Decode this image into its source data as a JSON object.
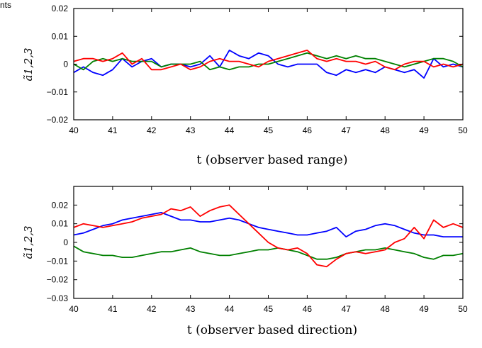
{
  "fragment_text": "nts",
  "chart_data": [
    {
      "type": "line",
      "xlabel": "t (observer based range)",
      "ylabel": "ã1,2,3",
      "xlim": [
        40,
        50
      ],
      "ylim": [
        -0.02,
        0.02
      ],
      "xticks": [
        40,
        41,
        42,
        43,
        44,
        45,
        46,
        47,
        48,
        49,
        50
      ],
      "yticks": [
        -0.02,
        -0.01,
        0,
        0.01,
        0.02
      ],
      "ytick_labels": [
        "−0.02",
        "−0.01",
        "0",
        "0.01",
        "0.02"
      ],
      "grid": false,
      "legend": "none",
      "series": [
        {
          "color": "#0000ff",
          "x": [
            40,
            40.25,
            40.5,
            40.75,
            41,
            41.25,
            41.5,
            41.75,
            42,
            42.25,
            42.5,
            42.75,
            43,
            43.25,
            43.5,
            43.75,
            44,
            44.25,
            44.5,
            44.75,
            45,
            45.25,
            45.5,
            45.75,
            46,
            46.25,
            46.5,
            46.75,
            47,
            47.25,
            47.5,
            47.75,
            48,
            48.25,
            48.5,
            48.75,
            49,
            49.25,
            49.5,
            49.75,
            50
          ],
          "y": [
            -0.003,
            -0.001,
            -0.003,
            -0.004,
            -0.002,
            0.002,
            -0.001,
            0.001,
            0.002,
            -0.001,
            0,
            0,
            -0.001,
            0,
            0.003,
            -0.001,
            0.005,
            0.003,
            0.002,
            0.004,
            0.003,
            0,
            -0.001,
            0,
            0,
            0,
            -0.003,
            -0.004,
            -0.002,
            -0.003,
            -0.002,
            -0.003,
            -0.001,
            -0.002,
            -0.003,
            -0.002,
            -0.005,
            0.002,
            -0.001,
            0,
            -0.001
          ]
        },
        {
          "color": "#008000",
          "x": [
            40,
            40.25,
            40.5,
            40.75,
            41,
            41.25,
            41.5,
            41.75,
            42,
            42.25,
            42.5,
            42.75,
            43,
            43.25,
            43.5,
            43.75,
            44,
            44.25,
            44.5,
            44.75,
            45,
            45.25,
            45.5,
            45.75,
            46,
            46.25,
            46.5,
            46.75,
            47,
            47.25,
            47.5,
            47.75,
            48,
            48.25,
            48.5,
            48.75,
            49,
            49.25,
            49.5,
            49.75,
            50
          ],
          "y": [
            0,
            -0.002,
            0.001,
            0.002,
            0.001,
            0.002,
            0.001,
            0.001,
            0.001,
            -0.001,
            0,
            0,
            0,
            0.001,
            -0.002,
            -0.001,
            -0.002,
            -0.001,
            -0.001,
            0,
            0,
            0.001,
            0.002,
            0.003,
            0.004,
            0.003,
            0.002,
            0.003,
            0.002,
            0.003,
            0.002,
            0.002,
            0.001,
            0,
            -0.001,
            0,
            0.001,
            0.002,
            0.002,
            0.001,
            -0.001
          ]
        },
        {
          "color": "#ff0000",
          "x": [
            40,
            40.25,
            40.5,
            40.75,
            41,
            41.25,
            41.5,
            41.75,
            42,
            42.25,
            42.5,
            42.75,
            43,
            43.25,
            43.5,
            43.75,
            44,
            44.25,
            44.5,
            44.75,
            45,
            45.25,
            45.5,
            45.75,
            46,
            46.25,
            46.5,
            46.75,
            47,
            47.25,
            47.5,
            47.75,
            48,
            48.25,
            48.5,
            48.75,
            49,
            49.25,
            49.5,
            49.75,
            50
          ],
          "y": [
            0.001,
            0.002,
            0.002,
            0.001,
            0.002,
            0.004,
            0,
            0.002,
            -0.002,
            -0.002,
            -0.001,
            0,
            -0.002,
            -0.001,
            0.001,
            0.002,
            0.001,
            0.001,
            0,
            -0.001,
            0.001,
            0.002,
            0.003,
            0.004,
            0.005,
            0.002,
            0.001,
            0.002,
            0.001,
            0.001,
            0,
            0.001,
            -0.001,
            -0.002,
            0,
            0.001,
            0.001,
            -0.001,
            0,
            -0.001,
            0
          ]
        }
      ]
    },
    {
      "type": "line",
      "xlabel": "t (observer based direction)",
      "ylabel": "ã1,2,3",
      "xlim": [
        40,
        50
      ],
      "ylim": [
        -0.03,
        0.03
      ],
      "xticks": [
        40,
        41,
        42,
        43,
        44,
        45,
        46,
        47,
        48,
        49,
        50
      ],
      "yticks": [
        -0.03,
        -0.02,
        -0.01,
        0,
        0.01,
        0.02
      ],
      "ytick_labels": [
        "−0.03",
        "−0.02",
        "−0.01",
        "0",
        "0.01",
        "0.02"
      ],
      "grid": false,
      "legend": "none",
      "series": [
        {
          "color": "#0000ff",
          "x": [
            40,
            40.25,
            40.5,
            40.75,
            41,
            41.25,
            41.5,
            41.75,
            42,
            42.25,
            42.5,
            42.75,
            43,
            43.25,
            43.5,
            43.75,
            44,
            44.25,
            44.5,
            44.75,
            45,
            45.25,
            45.5,
            45.75,
            46,
            46.25,
            46.5,
            46.75,
            47,
            47.25,
            47.5,
            47.75,
            48,
            48.25,
            48.5,
            48.75,
            49,
            49.25,
            49.5,
            49.75,
            50
          ],
          "y": [
            0.004,
            0.005,
            0.007,
            0.009,
            0.01,
            0.012,
            0.013,
            0.014,
            0.015,
            0.016,
            0.014,
            0.012,
            0.012,
            0.011,
            0.011,
            0.012,
            0.013,
            0.012,
            0.01,
            0.008,
            0.007,
            0.006,
            0.005,
            0.004,
            0.004,
            0.005,
            0.006,
            0.008,
            0.003,
            0.006,
            0.007,
            0.009,
            0.01,
            0.009,
            0.007,
            0.005,
            0.004,
            0.004,
            0.003,
            0.003,
            0.003
          ]
        },
        {
          "color": "#008000",
          "x": [
            40,
            40.25,
            40.5,
            40.75,
            41,
            41.25,
            41.5,
            41.75,
            42,
            42.25,
            42.5,
            42.75,
            43,
            43.25,
            43.5,
            43.75,
            44,
            44.25,
            44.5,
            44.75,
            45,
            45.25,
            45.5,
            45.75,
            46,
            46.25,
            46.5,
            46.75,
            47,
            47.25,
            47.5,
            47.75,
            48,
            48.25,
            48.5,
            48.75,
            49,
            49.25,
            49.5,
            49.75,
            50
          ],
          "y": [
            -0.002,
            -0.005,
            -0.006,
            -0.007,
            -0.007,
            -0.008,
            -0.008,
            -0.007,
            -0.006,
            -0.005,
            -0.005,
            -0.004,
            -0.003,
            -0.005,
            -0.006,
            -0.007,
            -0.007,
            -0.006,
            -0.005,
            -0.004,
            -0.004,
            -0.003,
            -0.004,
            -0.005,
            -0.007,
            -0.009,
            -0.009,
            -0.008,
            -0.006,
            -0.005,
            -0.004,
            -0.004,
            -0.003,
            -0.004,
            -0.005,
            -0.006,
            -0.008,
            -0.009,
            -0.007,
            -0.007,
            -0.006
          ]
        },
        {
          "color": "#ff0000",
          "x": [
            40,
            40.25,
            40.5,
            40.75,
            41,
            41.25,
            41.5,
            41.75,
            42,
            42.25,
            42.5,
            42.75,
            43,
            43.25,
            43.5,
            43.75,
            44,
            44.25,
            44.5,
            44.75,
            45,
            45.25,
            45.5,
            45.75,
            46,
            46.25,
            46.5,
            46.75,
            47,
            47.25,
            47.5,
            47.75,
            48,
            48.25,
            48.5,
            48.75,
            49,
            49.25,
            49.5,
            49.75,
            50
          ],
          "y": [
            0.008,
            0.01,
            0.009,
            0.008,
            0.009,
            0.01,
            0.011,
            0.013,
            0.014,
            0.015,
            0.018,
            0.017,
            0.019,
            0.014,
            0.017,
            0.019,
            0.02,
            0.015,
            0.01,
            0.005,
            0,
            -0.003,
            -0.004,
            -0.003,
            -0.006,
            -0.012,
            -0.013,
            -0.009,
            -0.006,
            -0.005,
            -0.006,
            -0.005,
            -0.004,
            0,
            0.002,
            0.008,
            0.002,
            0.012,
            0.008,
            0.01,
            0.008
          ]
        }
      ]
    }
  ]
}
